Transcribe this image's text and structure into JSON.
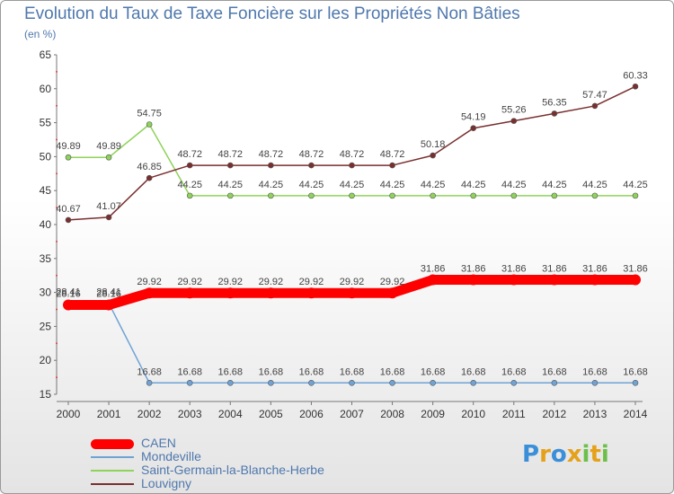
{
  "chart_data": {
    "type": "line",
    "title": "Evolution du Taux de Taxe Foncière sur les Propriétés Non Bâties",
    "ylabel": "(en %)",
    "xlabel": "",
    "ylim": [
      15,
      65
    ],
    "yticks": [
      15,
      20,
      25,
      30,
      35,
      40,
      45,
      50,
      55,
      60,
      65
    ],
    "categories": [
      "2000",
      "2001",
      "2002",
      "2003",
      "2004",
      "2005",
      "2006",
      "2007",
      "2008",
      "2009",
      "2010",
      "2011",
      "2012",
      "2013",
      "2014"
    ],
    "series": [
      {
        "name": "CAEN",
        "color": "#ff0000",
        "values": [
          28.16,
          28.16,
          29.92,
          29.92,
          29.92,
          29.92,
          29.92,
          29.92,
          29.92,
          31.86,
          31.86,
          31.86,
          31.86,
          31.86,
          31.86
        ],
        "labels": [
          "28.16",
          "28.16",
          "29.92",
          "29.92",
          "29.92",
          "29.92",
          "29.92",
          "29.92",
          "29.92",
          "31.86",
          "31.86",
          "31.86",
          "31.86",
          "31.86",
          "31.86"
        ]
      },
      {
        "name": "Mondeville",
        "color": "#6fa3d6",
        "values": [
          28.41,
          28.41,
          16.68,
          16.68,
          16.68,
          16.68,
          16.68,
          16.68,
          16.68,
          16.68,
          16.68,
          16.68,
          16.68,
          16.68,
          16.68
        ],
        "labels": [
          "28.41",
          "28.41",
          "16.68",
          "16.68",
          "16.68",
          "16.68",
          "16.68",
          "16.68",
          "16.68",
          "16.68",
          "16.68",
          "16.68",
          "16.68",
          "16.68",
          "16.68"
        ]
      },
      {
        "name": "Saint-Germain-la-Blanche-Herbe",
        "color": "#8fd35a",
        "values": [
          49.89,
          49.89,
          54.75,
          44.25,
          44.25,
          44.25,
          44.25,
          44.25,
          44.25,
          44.25,
          44.25,
          44.25,
          44.25,
          44.25,
          44.25
        ],
        "labels": [
          "49.89",
          "49.89",
          "54.75",
          "44.25",
          "44.25",
          "44.25",
          "44.25",
          "44.25",
          "44.25",
          "44.25",
          "44.25",
          "44.25",
          "44.25",
          "44.25",
          "44.25"
        ]
      },
      {
        "name": "Louvigny",
        "color": "#7a2f2f",
        "values": [
          40.67,
          41.07,
          46.85,
          48.72,
          48.72,
          48.72,
          48.72,
          48.72,
          48.72,
          50.18,
          54.19,
          55.26,
          56.35,
          57.47,
          60.33
        ],
        "labels": [
          "40.67",
          "41.07",
          "46.85",
          "48.72",
          "48.72",
          "48.72",
          "48.72",
          "48.72",
          "48.72",
          "50.18",
          "54.19",
          "55.26",
          "56.35",
          "57.47",
          "60.33"
        ]
      }
    ]
  },
  "legend": {
    "items": [
      {
        "name": "CAEN",
        "color": "#ff0000"
      },
      {
        "name": "Mondeville",
        "color": "#6fa3d6"
      },
      {
        "name": "Saint-Germain-la-Blanche-Herbe",
        "color": "#8fd35a"
      },
      {
        "name": "Louvigny",
        "color": "#7a2f2f"
      }
    ]
  },
  "brand": {
    "letters": [
      "P",
      "r",
      "o",
      "x",
      "i",
      "t",
      "i"
    ],
    "text": "Proxiti"
  }
}
